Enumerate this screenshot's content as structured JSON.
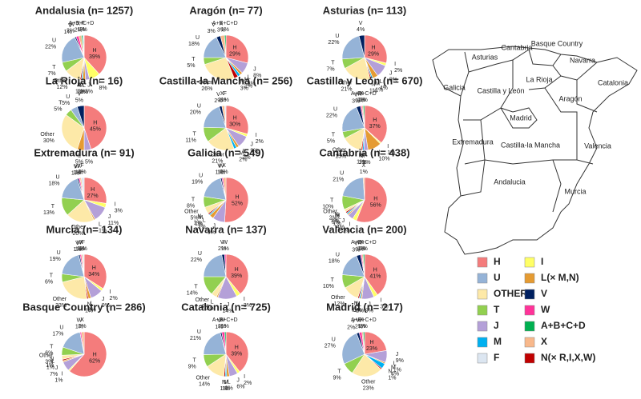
{
  "chart_data": [
    {
      "type": "pie",
      "title": "Andalusia (n= 1257)",
      "categories": [
        "H",
        "I",
        "J",
        "L",
        "M",
        "N",
        "Other",
        "T",
        "U",
        "V",
        "W",
        "X",
        "A+B+C+D",
        "F"
      ],
      "values": [
        39,
        8,
        3,
        2,
        1,
        1,
        12,
        7,
        22,
        1,
        2,
        2,
        1,
        1
      ],
      "value_labels": [
        "39%",
        "8%",
        "3%",
        "2%",
        "1%",
        "1%",
        "12%",
        "7%",
        "22%",
        "1%",
        "2%",
        "2%",
        "1%",
        "1%"
      ],
      "colors": [
        "#f47c7c",
        "#ffff66",
        "#b4a0d8",
        "#e59b32",
        "#00b0f0",
        "#c00000",
        "#fde9a8",
        "#92d050",
        "#95b3d7",
        "#002060",
        "#ff3399",
        "#f8b88b",
        "#00b050",
        "#dce6f1"
      ]
    },
    {
      "type": "pie",
      "title": "Aragón (n= 77)",
      "categories": [
        "H",
        "J",
        "L",
        "M",
        "N",
        "Other",
        "T",
        "U",
        "V",
        "X",
        "A+B+C+D"
      ],
      "values": [
        29,
        8,
        2,
        2,
        3,
        26,
        5,
        18,
        3,
        3,
        1
      ],
      "value_labels": [
        "29%",
        "8%",
        "2%",
        "2%",
        "3%",
        "26%",
        "5%",
        "18%",
        "3%",
        "3%",
        "1%"
      ],
      "colors": [
        "#f47c7c",
        "#b4a0d8",
        "#e59b32",
        "#00b0f0",
        "#c00000",
        "#fde9a8",
        "#92d050",
        "#95b3d7",
        "#002060",
        "#f8b88b",
        "#00b050"
      ]
    },
    {
      "type": "pie",
      "title": "Asturias (n= 113)",
      "categories": [
        "H",
        "I",
        "J",
        "L",
        "M",
        "N",
        "Other",
        "T",
        "U",
        "V"
      ],
      "values": [
        29,
        2,
        9,
        4,
        1,
        1,
        21,
        7,
        22,
        4
      ],
      "value_labels": [
        "29%",
        "2%",
        "9%",
        "4%",
        "1%",
        "1%",
        "21%",
        "7%",
        "22%",
        "4%"
      ],
      "colors": [
        "#f47c7c",
        "#ffff66",
        "#b4a0d8",
        "#e59b32",
        "#00b0f0",
        "#c00000",
        "#fde9a8",
        "#92d050",
        "#95b3d7",
        "#002060"
      ]
    },
    {
      "type": "pie",
      "title": "La Rioja (n= 16)",
      "categories": [
        "H",
        null,
        "L",
        "Other",
        "T",
        "U",
        "V"
      ],
      "values": [
        45,
        5,
        5,
        30,
        5,
        5,
        5
      ],
      "value_labels": [
        "45%",
        "5%",
        "5%",
        "30%",
        "5%",
        "5%",
        "5%"
      ],
      "colors": [
        "#f47c7c",
        "#b4a0d8",
        "#e59b32",
        "#fde9a8",
        "#92d050",
        "#95b3d7",
        "#002060"
      ]
    },
    {
      "type": "pie",
      "title": "Castilla-la Mancha (n= 256)",
      "categories": [
        "H",
        "I",
        "J",
        "L",
        "M",
        "Other",
        "T",
        "U",
        "V",
        "X",
        "F"
      ],
      "values": [
        30,
        2,
        9,
        2,
        2,
        21,
        11,
        20,
        2,
        2,
        1
      ],
      "value_labels": [
        "30%",
        "2%",
        "9%",
        "2%",
        "2%",
        "21%",
        "11%",
        "20%",
        "2%",
        "2%",
        "1%"
      ],
      "colors": [
        "#f47c7c",
        "#ffff66",
        "#b4a0d8",
        "#e59b32",
        "#00b0f0",
        "#fde9a8",
        "#92d050",
        "#95b3d7",
        "#002060",
        "#f8b88b",
        "#dce6f1"
      ]
    },
    {
      "type": "pie",
      "title": "Castilla y León (n= 670)",
      "categories": [
        "H",
        "I",
        "L",
        null,
        "M",
        "N",
        "Other",
        "T",
        "U",
        "V",
        "W",
        "X",
        "A+B+C+D"
      ],
      "values": [
        37,
        1,
        10,
        3,
        1,
        1,
        15,
        5,
        22,
        3,
        1,
        1,
        1
      ],
      "value_labels": [
        "37%",
        "1%",
        "10%",
        "3%",
        "1%",
        "1%",
        "15%",
        "5%",
        "22%",
        "3%",
        "1%",
        "1%",
        "1%"
      ],
      "colors": [
        "#f47c7c",
        "#ffff66",
        "#e59b32",
        "#b4a0d8",
        "#00b0f0",
        "#c00000",
        "#fde9a8",
        "#92d050",
        "#95b3d7",
        "#002060",
        "#ff3399",
        "#f8b88b",
        "#00b050"
      ]
    },
    {
      "type": "pie",
      "title": "Extremadura (n= 91)",
      "categories": [
        "H",
        "I",
        "J",
        "L",
        "Other",
        "T",
        "U",
        "V",
        "W",
        "X",
        "F"
      ],
      "values": [
        27,
        3,
        11,
        1,
        20,
        13,
        18,
        1,
        1,
        1,
        2
      ],
      "value_labels": [
        "27%",
        "3%",
        "11%",
        "1%",
        "20%",
        "13%",
        "18%",
        "1%",
        "1%",
        "1%",
        "2%"
      ],
      "colors": [
        "#f47c7c",
        "#ffff66",
        "#b4a0d8",
        "#e59b32",
        "#fde9a8",
        "#92d050",
        "#95b3d7",
        "#002060",
        "#ff3399",
        "#f8b88b",
        "#dce6f1"
      ]
    },
    {
      "type": "pie",
      "title": "Galicia (n= 549)",
      "categories": [
        "H",
        "J",
        "L",
        "M",
        "N",
        "Other",
        "T",
        "U",
        "V",
        "W",
        "X"
      ],
      "values": [
        52,
        9,
        3,
        1,
        1,
        5,
        8,
        19,
        1,
        1,
        2
      ],
      "value_labels": [
        "52%",
        "9%",
        "3%",
        "1%",
        "1%",
        "5%",
        "8%",
        "19%",
        "1%",
        "1%",
        "2%"
      ],
      "colors": [
        "#f47c7c",
        "#b4a0d8",
        "#e59b32",
        "#00b0f0",
        "#c00000",
        "#fde9a8",
        "#92d050",
        "#95b3d7",
        "#002060",
        "#ff3399",
        "#f8b88b"
      ]
    },
    {
      "type": "pie",
      "title": "Cantabria (n= 438)",
      "categories": [
        "H",
        "I",
        "J",
        "L",
        "M",
        "N",
        "Other",
        "T",
        "U",
        "X"
      ],
      "values": [
        56,
        3,
        4,
        1,
        1,
        1,
        2,
        10,
        21,
        1
      ],
      "value_labels": [
        "56%",
        "3%",
        "4%",
        "1%",
        "1%",
        "1%",
        "2%",
        "10%",
        "21%",
        "1%"
      ],
      "colors": [
        "#f47c7c",
        "#ffff66",
        "#b4a0d8",
        "#e59b32",
        "#00b0f0",
        "#c00000",
        "#fde9a8",
        "#92d050",
        "#95b3d7",
        "#f8b88b"
      ]
    },
    {
      "type": "pie",
      "title": "Murcia (n= 134)",
      "categories": [
        "H",
        "I",
        "J",
        "L",
        "N",
        "Other",
        "T",
        "U",
        "V",
        "W",
        "X",
        "F"
      ],
      "values": [
        34,
        2,
        9,
        2,
        1,
        23,
        6,
        19,
        1,
        1,
        1,
        1
      ],
      "value_labels": [
        "34%",
        "2%",
        "9%",
        "2%",
        "1%",
        "23%",
        "6%",
        "19%",
        "1%",
        "1%",
        "1%",
        "1%"
      ],
      "colors": [
        "#f47c7c",
        "#ffff66",
        "#b4a0d8",
        "#e59b32",
        "#c00000",
        "#fde9a8",
        "#92d050",
        "#95b3d7",
        "#002060",
        "#ff3399",
        "#f8b88b",
        "#dce6f1"
      ]
    },
    {
      "type": "pie",
      "title": "Navarra (n= 137)",
      "categories": [
        "H",
        "I",
        "J",
        "L",
        "Other",
        "T",
        "U",
        "V",
        "W"
      ],
      "values": [
        39,
        3,
        14,
        1,
        4,
        14,
        22,
        2,
        1
      ],
      "value_labels": [
        "39%",
        "3%",
        "14%",
        "1%",
        "4%",
        "14%",
        "22%",
        "2%",
        "1%"
      ],
      "colors": [
        "#f47c7c",
        "#ffff66",
        "#b4a0d8",
        "#e59b32",
        "#fde9a8",
        "#92d050",
        "#95b3d7",
        "#002060",
        "#ff3399"
      ]
    },
    {
      "type": "pie",
      "title": "Valencia (n= 200)",
      "categories": [
        "H",
        "I",
        "J",
        "L",
        "M",
        "N",
        "Other",
        "T",
        "U",
        "V",
        "W",
        "X",
        "A+B+C+D"
      ],
      "values": [
        41,
        3,
        9,
        1,
        1,
        1,
        12,
        10,
        18,
        3,
        1,
        1,
        1
      ],
      "value_labels": [
        "41%",
        "3%",
        "9%",
        "1%",
        "1%",
        "1%",
        "12%",
        "10%",
        "18%",
        "3%",
        "1%",
        "1%",
        "1%"
      ],
      "colors": [
        "#f47c7c",
        "#ffff66",
        "#b4a0d8",
        "#e59b32",
        "#00b0f0",
        "#c00000",
        "#fde9a8",
        "#92d050",
        "#95b3d7",
        "#002060",
        "#ff3399",
        "#f8b88b",
        "#00b050"
      ]
    },
    {
      "type": "pie",
      "title": "Basque Country (n= 286)",
      "categories": [
        "H",
        "I",
        "J",
        "L",
        "N",
        "Other",
        "T",
        "U",
        "W",
        "X"
      ],
      "values": [
        62,
        1,
        7,
        1,
        1,
        3,
        6,
        17,
        1,
        2
      ],
      "value_labels": [
        "62%",
        "1%",
        "7%",
        "1%",
        "1%",
        "3%",
        "6%",
        "17%",
        "1%",
        "2%"
      ],
      "colors": [
        "#f47c7c",
        "#ffff66",
        "#b4a0d8",
        "#e59b32",
        "#c00000",
        "#fde9a8",
        "#92d050",
        "#95b3d7",
        "#ff3399",
        "#f8b88b"
      ]
    },
    {
      "type": "pie",
      "title": "Catalonia (n= 725)",
      "categories": [
        "H",
        "I",
        "J",
        "L",
        "M",
        "N",
        "Other",
        "T",
        "U",
        "V",
        "W",
        "A+B+C+D"
      ],
      "values": [
        39,
        2,
        6,
        2,
        1,
        1,
        14,
        9,
        21,
        1,
        2,
        1
      ],
      "value_labels": [
        "39%",
        "2%",
        "6%",
        "2%",
        "1%",
        "1%",
        "14%",
        "9%",
        "21%",
        "1%",
        "2%",
        "1%"
      ],
      "colors": [
        "#f47c7c",
        "#ffff66",
        "#b4a0d8",
        "#e59b32",
        "#00b0f0",
        "#c00000",
        "#fde9a8",
        "#92d050",
        "#95b3d7",
        "#002060",
        "#ff3399",
        "#00b050"
      ]
    },
    {
      "type": "pie",
      "title": "Madrid (n= 217)",
      "categories": [
        "H",
        "J",
        "L",
        "M",
        "N",
        "Other",
        "T",
        "U",
        "V",
        "W",
        "X",
        "A+B+C+D"
      ],
      "values": [
        23,
        9,
        1,
        4,
        1,
        23,
        9,
        27,
        2,
        2,
        1,
        1
      ],
      "value_labels": [
        "23%",
        "9%",
        "1%",
        "4%",
        "1%",
        "23%",
        "9%",
        "27%",
        "2%",
        "2%",
        "1%",
        "1%"
      ],
      "colors": [
        "#f47c7c",
        "#b4a0d8",
        "#e59b32",
        "#00b0f0",
        "#c00000",
        "#fde9a8",
        "#92d050",
        "#95b3d7",
        "#002060",
        "#ff3399",
        "#f8b88b",
        "#00b050"
      ]
    }
  ],
  "legend": {
    "items": [
      {
        "name": "H",
        "color": "#f47c7c"
      },
      {
        "name": "U",
        "color": "#95b3d7"
      },
      {
        "name": "OTHER",
        "color": "#fde9a8"
      },
      {
        "name": "T",
        "color": "#92d050"
      },
      {
        "name": "J",
        "color": "#b4a0d8"
      },
      {
        "name": "M",
        "color": "#00b0f0"
      },
      {
        "name": "F",
        "color": "#dce6f1"
      },
      {
        "name": "I",
        "color": "#ffff66"
      },
      {
        "name": "L(× M,N)",
        "color": "#e59b32"
      },
      {
        "name": "V",
        "color": "#002060"
      },
      {
        "name": "W",
        "color": "#ff3399"
      },
      {
        "name": "A+B+C+D",
        "color": "#00b050"
      },
      {
        "name": "X",
        "color": "#f8b88b"
      },
      {
        "name": "N(× R,I,X,W)",
        "color": "#c00000"
      }
    ]
  },
  "map": {
    "labels": [
      "Galicia",
      "Asturias",
      "Cantabria",
      "Basque Country",
      "Navarra",
      "La Rioja",
      "Castilla y León",
      "Aragón",
      "Catalonia",
      "Madrid",
      "Extremadura",
      "Castilla-la Mancha",
      "Valencia",
      "Andalucia",
      "Murcia"
    ]
  }
}
